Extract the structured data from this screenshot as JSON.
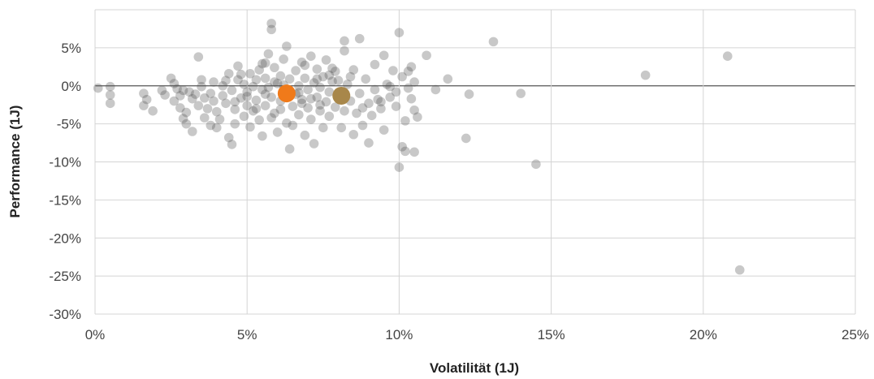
{
  "chart_data": {
    "type": "scatter",
    "xlabel": "Volatilität (1J)",
    "ylabel": "Performance (1J)",
    "xlim": [
      0,
      25
    ],
    "ylim": [
      -30,
      10
    ],
    "x_ticks": [
      0,
      5,
      10,
      15,
      20,
      25
    ],
    "y_ticks": [
      5,
      0,
      -5,
      -10,
      -15,
      -20,
      -25,
      -30
    ],
    "x_tick_labels": [
      "0%",
      "5%",
      "10%",
      "15%",
      "20%",
      "25%"
    ],
    "y_tick_labels": [
      "5%",
      "0%",
      "-5%",
      "-10%",
      "-15%",
      "-20%",
      "-25%",
      "-30%"
    ],
    "grid": true,
    "colors": {
      "points": "#555555",
      "highlight_1": "#f07a1a",
      "highlight_2": "#a8874a"
    },
    "highlights": [
      {
        "x": 6.3,
        "y": -1.0,
        "color": "#f07a1a"
      },
      {
        "x": 8.1,
        "y": -1.3,
        "color": "#a8874a"
      }
    ],
    "points": [
      [
        0.1,
        -0.3
      ],
      [
        0.5,
        -0.1
      ],
      [
        0.5,
        -1.2
      ],
      [
        0.5,
        -2.3
      ],
      [
        1.6,
        -1.0
      ],
      [
        1.7,
        -1.8
      ],
      [
        1.6,
        -2.6
      ],
      [
        1.9,
        -3.3
      ],
      [
        2.2,
        -0.6
      ],
      [
        2.3,
        -1.2
      ],
      [
        2.5,
        1.0
      ],
      [
        2.6,
        0.3
      ],
      [
        2.7,
        -0.4
      ],
      [
        2.8,
        -1.3
      ],
      [
        2.6,
        -2.0
      ],
      [
        2.8,
        -2.9
      ],
      [
        3.0,
        -3.5
      ],
      [
        2.9,
        -4.3
      ],
      [
        3.0,
        -5.0
      ],
      [
        3.2,
        -6.0
      ],
      [
        3.1,
        -0.8
      ],
      [
        3.2,
        -1.7
      ],
      [
        3.4,
        -2.6
      ],
      [
        3.4,
        3.8
      ],
      [
        3.5,
        0.8
      ],
      [
        3.5,
        -0.1
      ],
      [
        3.6,
        -4.2
      ],
      [
        3.8,
        -5.2
      ],
      [
        3.8,
        -1.0
      ],
      [
        3.9,
        -2.0
      ],
      [
        3.9,
        0.5
      ],
      [
        4.0,
        -3.4
      ],
      [
        4.1,
        -4.4
      ],
      [
        4.2,
        -1.3
      ],
      [
        4.2,
        0.0
      ],
      [
        4.3,
        -2.3
      ],
      [
        4.4,
        1.6
      ],
      [
        4.4,
        -6.8
      ],
      [
        4.5,
        -7.7
      ],
      [
        4.5,
        -0.6
      ],
      [
        4.6,
        -3.1
      ],
      [
        4.6,
        -5.0
      ],
      [
        4.7,
        2.6
      ],
      [
        4.7,
        0.8
      ],
      [
        4.8,
        -1.6
      ],
      [
        4.9,
        -4.0
      ],
      [
        4.9,
        0.2
      ],
      [
        5.0,
        -2.6
      ],
      [
        5.0,
        -0.8
      ],
      [
        5.1,
        1.6
      ],
      [
        5.1,
        -5.4
      ],
      [
        5.2,
        -3.3
      ],
      [
        5.2,
        -0.1
      ],
      [
        5.3,
        0.8
      ],
      [
        5.3,
        -1.9
      ],
      [
        5.4,
        2.1
      ],
      [
        5.4,
        -4.5
      ],
      [
        5.5,
        -0.5
      ],
      [
        5.5,
        -6.6
      ],
      [
        5.6,
        3.0
      ],
      [
        5.6,
        1.0
      ],
      [
        5.6,
        -2.6
      ],
      [
        5.7,
        4.2
      ],
      [
        5.7,
        -0.2
      ],
      [
        5.8,
        8.2
      ],
      [
        5.8,
        7.4
      ],
      [
        5.8,
        -1.5
      ],
      [
        5.9,
        2.4
      ],
      [
        5.9,
        -3.6
      ],
      [
        6.0,
        -6.1
      ],
      [
        6.0,
        0.3
      ],
      [
        6.1,
        1.3
      ],
      [
        6.1,
        -2.0
      ],
      [
        6.2,
        3.5
      ],
      [
        6.2,
        -0.7
      ],
      [
        6.3,
        5.2
      ],
      [
        6.3,
        -4.9
      ],
      [
        6.4,
        -8.3
      ],
      [
        6.4,
        0.9
      ],
      [
        6.5,
        -2.7
      ],
      [
        6.6,
        -1.1
      ],
      [
        6.6,
        2.0
      ],
      [
        6.7,
        -3.8
      ],
      [
        6.7,
        0.0
      ],
      [
        6.8,
        3.1
      ],
      [
        6.8,
        -1.8
      ],
      [
        6.9,
        -6.5
      ],
      [
        6.9,
        1.0
      ],
      [
        7.0,
        -0.5
      ],
      [
        7.0,
        -2.9
      ],
      [
        7.1,
        3.9
      ],
      [
        7.1,
        -4.4
      ],
      [
        7.2,
        0.4
      ],
      [
        7.2,
        -7.6
      ],
      [
        7.3,
        -1.5
      ],
      [
        7.3,
        2.2
      ],
      [
        7.4,
        -3.3
      ],
      [
        7.4,
        -0.2
      ],
      [
        7.5,
        1.2
      ],
      [
        7.5,
        -5.5
      ],
      [
        7.6,
        -2.1
      ],
      [
        7.6,
        3.4
      ],
      [
        7.7,
        -0.8
      ],
      [
        7.7,
        -4.0
      ],
      [
        7.8,
        0.6
      ],
      [
        7.9,
        -2.8
      ],
      [
        7.9,
        1.9
      ],
      [
        8.0,
        -1.1
      ],
      [
        8.1,
        -5.5
      ],
      [
        8.2,
        -3.3
      ],
      [
        8.2,
        5.9
      ],
      [
        8.2,
        4.6
      ],
      [
        8.3,
        0.2
      ],
      [
        8.4,
        -2.0
      ],
      [
        8.5,
        -6.4
      ],
      [
        8.5,
        2.1
      ],
      [
        8.6,
        -3.6
      ],
      [
        8.7,
        6.2
      ],
      [
        8.7,
        -1.0
      ],
      [
        8.8,
        -5.2
      ],
      [
        8.9,
        0.9
      ],
      [
        9.0,
        -2.3
      ],
      [
        9.0,
        -7.5
      ],
      [
        9.1,
        -3.9
      ],
      [
        9.2,
        2.8
      ],
      [
        9.2,
        -0.5
      ],
      [
        9.3,
        -1.8
      ],
      [
        9.4,
        -3.0
      ],
      [
        9.5,
        4.0
      ],
      [
        9.5,
        -5.8
      ],
      [
        9.6,
        0.2
      ],
      [
        9.7,
        -1.5
      ],
      [
        9.8,
        2.0
      ],
      [
        9.9,
        -2.7
      ],
      [
        9.9,
        -0.8
      ],
      [
        10.0,
        -10.7
      ],
      [
        10.0,
        7.0
      ],
      [
        10.1,
        1.2
      ],
      [
        10.1,
        -8.0
      ],
      [
        10.2,
        -8.6
      ],
      [
        10.2,
        -4.6
      ],
      [
        10.3,
        -0.3
      ],
      [
        10.3,
        1.9
      ],
      [
        10.4,
        2.5
      ],
      [
        10.4,
        -1.7
      ],
      [
        10.5,
        -8.7
      ],
      [
        10.5,
        -3.2
      ],
      [
        10.5,
        0.5
      ],
      [
        10.6,
        -4.1
      ],
      [
        10.9,
        4.0
      ],
      [
        11.2,
        -0.5
      ],
      [
        11.6,
        0.9
      ],
      [
        12.2,
        -6.9
      ],
      [
        12.3,
        -1.1
      ],
      [
        13.1,
        5.8
      ],
      [
        14.0,
        -1.0
      ],
      [
        14.5,
        -10.3
      ],
      [
        18.1,
        1.4
      ],
      [
        20.8,
        3.9
      ],
      [
        21.2,
        -24.2
      ],
      [
        4.8,
        1.5
      ],
      [
        5.5,
        2.9
      ],
      [
        6.9,
        2.7
      ],
      [
        7.8,
        2.3
      ],
      [
        8.4,
        1.2
      ],
      [
        9.7,
        -0.1
      ],
      [
        6.5,
        -5.2
      ],
      [
        5.3,
        -3.0
      ],
      [
        7.1,
        -1.7
      ],
      [
        6.1,
        -3.1
      ],
      [
        3.3,
        -1.1
      ],
      [
        2.9,
        -0.6
      ],
      [
        4.0,
        -5.5
      ],
      [
        5.8,
        -4.2
      ],
      [
        6.7,
        -0.9
      ],
      [
        7.3,
        0.9
      ],
      [
        8.8,
        -2.9
      ],
      [
        9.4,
        -2.1
      ],
      [
        5.9,
        0.5
      ],
      [
        4.6,
        -2.1
      ],
      [
        3.7,
        -3.0
      ],
      [
        5.0,
        -1.4
      ],
      [
        6.2,
        0.1
      ],
      [
        7.4,
        -2.5
      ],
      [
        8.0,
        0.7
      ],
      [
        4.3,
        0.7
      ],
      [
        5.6,
        -1.1
      ],
      [
        6.8,
        -2.3
      ],
      [
        7.7,
        1.4
      ],
      [
        3.6,
        -1.6
      ]
    ]
  }
}
